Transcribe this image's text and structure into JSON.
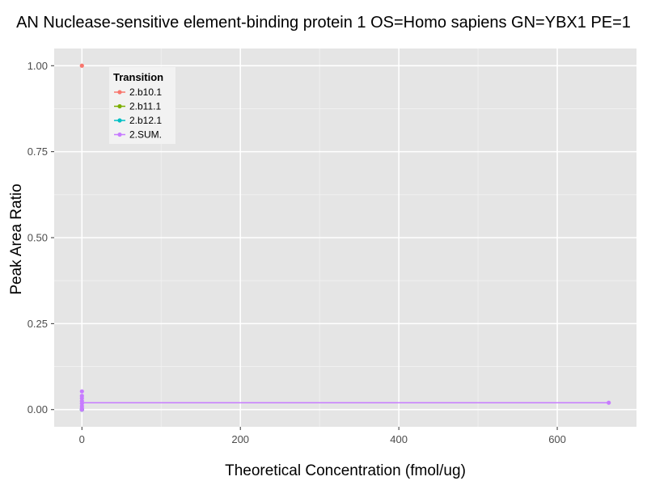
{
  "chart_data": {
    "type": "line",
    "title": "AN Nuclease-sensitive element-binding protein 1 OS=Homo sapiens GN=YBX1 PE=1",
    "xlabel": "Theoretical Concentration (fmol/ug)",
    "ylabel": "Peak Area Ratio",
    "xlim": [
      -35,
      700
    ],
    "ylim": [
      -0.05,
      1.05
    ],
    "x_ticks": [
      0,
      200,
      400,
      600
    ],
    "x_tick_labels": [
      "0",
      "200",
      "400",
      "600"
    ],
    "y_ticks": [
      0,
      0.25,
      0.5,
      0.75,
      1.0
    ],
    "y_tick_labels": [
      "0.00",
      "0.25",
      "0.50",
      "0.75",
      "1.00"
    ],
    "grid": true,
    "legend": {
      "title": "Transition",
      "position": "top-left"
    },
    "series": [
      {
        "name": "2.b10.1",
        "color": "#F8766D",
        "points": [
          [
            0,
            1.0
          ]
        ]
      },
      {
        "name": "2.b11.1",
        "color": "#7CAE00",
        "points": [
          [
            0,
            0.0
          ]
        ]
      },
      {
        "name": "2.b12.1",
        "color": "#00BFC4",
        "points": [
          [
            0,
            0.0
          ]
        ]
      },
      {
        "name": "2.SUM.",
        "color": "#C77CFF",
        "points": [
          [
            0,
            0.053
          ],
          [
            0,
            0.04
          ],
          [
            0,
            0.033
          ],
          [
            0,
            0.025
          ],
          [
            0,
            0.018
          ],
          [
            0,
            0.01
          ],
          [
            0,
            0.004
          ],
          [
            0,
            0.0
          ],
          [
            665,
            0.02
          ]
        ],
        "line": [
          [
            0,
            0.02
          ],
          [
            665,
            0.02
          ]
        ]
      }
    ]
  }
}
